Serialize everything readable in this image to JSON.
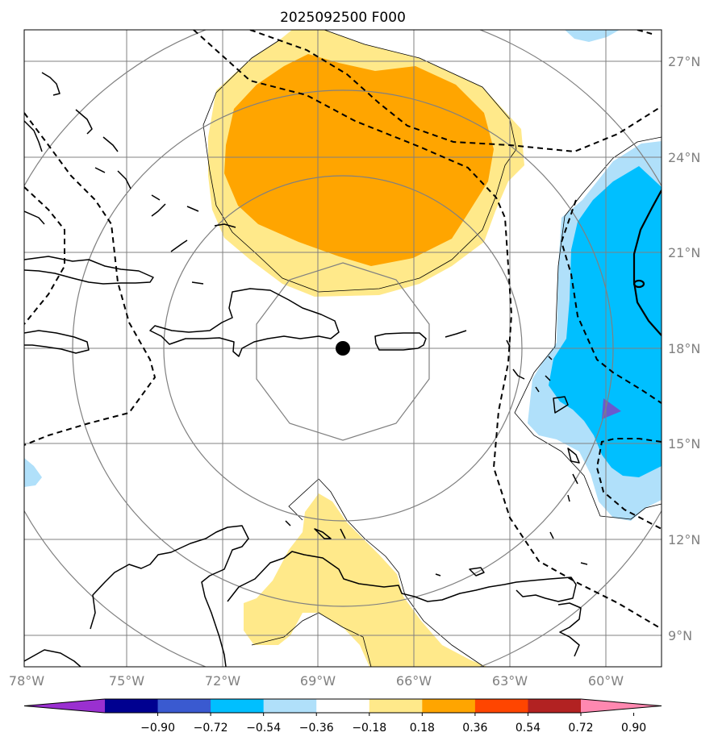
{
  "title": "2025092500 F000",
  "x_ticks": [
    "78°W",
    "75°W",
    "72°W",
    "69°W",
    "66°W",
    "63°W",
    "60°W"
  ],
  "y_ticks": [
    "27°N",
    "24°N",
    "21°N",
    "18°N",
    "15°N",
    "12°N",
    "9°N"
  ],
  "colorbar": {
    "levels": [
      "−0.90",
      "−0.72",
      "−0.54",
      "−0.36",
      "−0.18",
      "0.18",
      "0.36",
      "0.54",
      "0.72",
      "0.90"
    ],
    "colors": [
      "#9a30d0",
      "#000090",
      "#3a5ad0",
      "#00bfff",
      "#b0e0fa",
      "#ffffff",
      "#ffe98a",
      "#ffa500",
      "#ff4500",
      "#b22222",
      "#ff88b0"
    ]
  },
  "fill_colors": {
    "yellow": "#ffe98a",
    "orange": "#ffa500",
    "light_blue": "#b0e0fa",
    "blue": "#00bfff",
    "violet": "#6a5acd"
  },
  "center_marker": {
    "lon": -68.2,
    "lat": 18.0
  }
}
